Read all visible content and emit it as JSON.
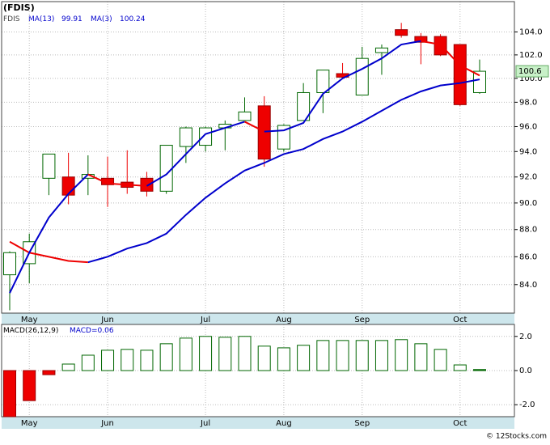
{
  "chart_data": [
    {
      "type": "candlestick",
      "title": "(FDIS)",
      "symbol": "FDIS",
      "log_scale": true,
      "grid": true,
      "categories": [
        null,
        "May",
        null,
        null,
        null,
        "Jun",
        null,
        null,
        null,
        null,
        "Jul",
        null,
        null,
        null,
        "Aug",
        null,
        null,
        null,
        "Sep",
        null,
        null,
        null,
        null,
        "Oct",
        null
      ],
      "open": [
        84.7,
        85.5,
        91.9,
        92.0,
        91.9,
        91.9,
        91.6,
        91.9,
        90.9,
        94.4,
        94.5,
        95.9,
        96.5,
        97.7,
        94.2,
        96.5,
        98.8,
        100.4,
        98.6,
        102.2,
        104.2,
        103.6,
        103.6,
        102.9,
        98.8
      ],
      "high": [
        86.4,
        87.7,
        93.8,
        93.9,
        93.7,
        93.6,
        94.1,
        92.4,
        94.5,
        96.0,
        96.0,
        96.5,
        98.4,
        98.5,
        96.2,
        99.6,
        100.7,
        101.3,
        102.7,
        102.9,
        104.8,
        103.9,
        103.8,
        102.9,
        101.6
      ],
      "low": [
        82.2,
        84.1,
        90.6,
        89.9,
        90.6,
        89.7,
        90.7,
        90.5,
        90.7,
        93.1,
        94.0,
        94.1,
        96.5,
        92.8,
        94.0,
        96.5,
        97.1,
        100.0,
        98.6,
        100.3,
        103.5,
        101.2,
        101.9,
        97.7,
        98.7
      ],
      "close": [
        86.3,
        87.1,
        93.8,
        90.6,
        92.2,
        91.4,
        91.2,
        90.9,
        94.5,
        95.9,
        95.9,
        96.2,
        97.2,
        93.4,
        96.1,
        98.8,
        100.7,
        100.1,
        101.7,
        102.6,
        103.7,
        103.1,
        102.0,
        97.8,
        100.6
      ],
      "up_color": "#006600",
      "down_color": "#ee0000",
      "series": [
        {
          "name": "MA(13)",
          "color": "#0000cc",
          "down_color": "#ee0000",
          "values": [
            87.1,
            86.3,
            86.0,
            85.7,
            85.6,
            86.0,
            86.6,
            87.0,
            87.7,
            89.1,
            90.4,
            91.5,
            92.5,
            93.1,
            93.8,
            94.2,
            95.0,
            95.6,
            96.4,
            97.3,
            98.2,
            98.9,
            99.4,
            99.6,
            99.91
          ]
        },
        {
          "name": "MA(3)",
          "color": "#0000cc",
          "down_color": "#ee0000",
          "values": [
            83.4,
            86.3,
            88.9,
            90.7,
            92.2,
            91.5,
            91.4,
            91.3,
            92.2,
            93.8,
            95.4,
            95.9,
            96.4,
            95.6,
            95.7,
            96.3,
            98.7,
            100.0,
            100.8,
            101.7,
            102.9,
            103.2,
            102.9,
            101.1,
            100.24
          ]
        }
      ],
      "ylim": [
        82.0,
        106.7
      ],
      "yticks": [
        {
          "value": 84,
          "label": "84.0"
        },
        {
          "value": 86,
          "label": "86.0"
        },
        {
          "value": 88,
          "label": "88.0"
        },
        {
          "value": 90,
          "label": "90.0"
        },
        {
          "value": 92,
          "label": "92.0"
        },
        {
          "value": 94,
          "label": "94.0"
        },
        {
          "value": 96,
          "label": "96.0"
        },
        {
          "value": 98,
          "label": "98.0"
        },
        {
          "value": 100,
          "label": "100.0"
        },
        {
          "value": 102,
          "label": "102.0"
        },
        {
          "value": 104,
          "label": "104.0"
        }
      ]
    },
    {
      "type": "bar",
      "name": "MACD(26,12,9)",
      "current_label": "MACD=",
      "grid": true,
      "categories": [
        null,
        "May",
        null,
        null,
        null,
        "Jun",
        null,
        null,
        null,
        null,
        "Jul",
        null,
        null,
        null,
        "Aug",
        null,
        null,
        null,
        "Sep",
        null,
        null,
        null,
        null,
        "Oct",
        null
      ],
      "values": [
        -2.7,
        -1.76,
        -0.24,
        0.38,
        0.9,
        1.19,
        1.24,
        1.19,
        1.57,
        1.9,
        2.0,
        1.95,
        2.0,
        1.43,
        1.33,
        1.48,
        1.76,
        1.76,
        1.76,
        1.76,
        1.81,
        1.57,
        1.24,
        0.33,
        0.06
      ],
      "up_color": "#006600",
      "down_color": "#ee0000",
      "ylim": [
        -2.7,
        2.7
      ],
      "yticks": [
        {
          "value": -2,
          "label": "-2.0"
        },
        {
          "value": 0,
          "label": "0.0"
        },
        {
          "value": 2,
          "label": "2.0"
        }
      ]
    },
    {
      "credit": "© 12Stocks.com"
    }
  ]
}
